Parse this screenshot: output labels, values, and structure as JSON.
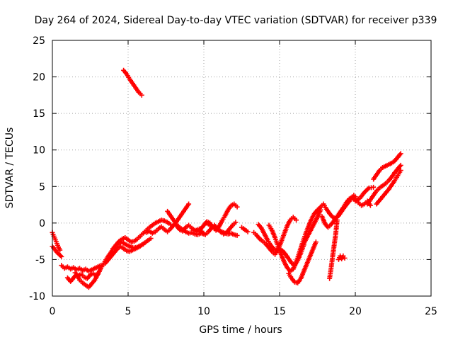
{
  "chart_data": {
    "type": "scatter",
    "title": "Day 264 of 2024, Sidereal Day-to-day VTEC variation (SDTVAR) for receiver p339",
    "xlabel": "GPS time / hours",
    "ylabel": "SDTVAR / TECUs",
    "xlim": [
      0,
      25
    ],
    "ylim": [
      -10,
      25
    ],
    "xticks": [
      0,
      5,
      10,
      15,
      20,
      25
    ],
    "yticks": [
      -10,
      -5,
      0,
      5,
      10,
      15,
      20,
      25
    ],
    "grid": true,
    "legend": "none",
    "marker": "plus",
    "color": "#ff0000",
    "series": [
      {
        "x": [
          0.0,
          0.1,
          0.2,
          0.3,
          0.4,
          0.5
        ],
        "y": [
          -1.3,
          -1.8,
          -2.3,
          -2.8,
          -3.3,
          -3.7
        ]
      },
      {
        "x": [
          0.0,
          0.15,
          0.3,
          0.45,
          0.6
        ],
        "y": [
          -3.2,
          -3.6,
          -4.0,
          -4.3,
          -4.6
        ]
      },
      {
        "x": [
          0.6,
          0.8,
          1.0,
          1.2,
          1.4,
          1.6,
          1.8,
          2.0,
          2.2,
          2.4,
          2.6,
          2.8,
          3.0,
          3.2
        ],
        "y": [
          -5.8,
          -6.2,
          -6.0,
          -6.3,
          -6.1,
          -6.4,
          -6.2,
          -6.5,
          -6.3,
          -6.6,
          -6.4,
          -6.2,
          -6.0,
          -5.8
        ]
      },
      {
        "x": [
          1.0,
          1.2,
          1.4,
          1.6,
          1.8,
          2.0,
          2.2,
          2.4,
          2.6,
          2.8,
          3.0
        ],
        "y": [
          -7.5,
          -8.0,
          -7.5,
          -7.0,
          -7.8,
          -8.2,
          -8.5,
          -8.8,
          -8.3,
          -7.8,
          -7.0
        ]
      },
      {
        "x": [
          1.5,
          1.7,
          1.9,
          2.1,
          2.3,
          2.5,
          2.7,
          2.9,
          3.1
        ],
        "y": [
          -6.8,
          -7.2,
          -7.0,
          -7.4,
          -7.6,
          -7.1,
          -6.9,
          -7.3,
          -6.6
        ]
      },
      {
        "x": [
          3.0,
          3.2,
          3.4,
          3.6,
          3.8,
          4.0,
          4.2,
          4.4,
          4.6,
          4.8,
          5.0,
          5.2,
          5.4,
          5.6,
          5.8,
          6.0
        ],
        "y": [
          -7.0,
          -6.2,
          -5.5,
          -4.8,
          -4.2,
          -3.6,
          -3.2,
          -2.8,
          -2.6,
          -2.9,
          -3.1,
          -3.3,
          -3.4,
          -3.3,
          -3.1,
          -2.9
        ]
      },
      {
        "x": [
          3.5,
          3.7,
          3.9,
          4.1,
          4.3,
          4.5,
          4.7,
          4.9,
          5.1,
          5.3,
          5.5,
          5.7,
          5.9,
          6.1,
          6.3,
          6.5
        ],
        "y": [
          -5.5,
          -5.0,
          -4.5,
          -4.0,
          -3.5,
          -3.2,
          -3.5,
          -3.8,
          -3.9,
          -3.7,
          -3.5,
          -3.3,
          -3.0,
          -2.7,
          -2.4,
          -2.1
        ]
      },
      {
        "x": [
          4.0,
          4.2,
          4.4,
          4.6,
          4.8,
          5.0,
          5.2,
          5.4,
          5.6,
          5.8,
          6.0,
          6.2,
          6.4,
          6.6,
          6.8,
          7.0,
          7.2,
          7.4,
          7.6,
          7.8
        ],
        "y": [
          -3.5,
          -3.0,
          -2.5,
          -2.2,
          -2.0,
          -2.3,
          -2.6,
          -2.5,
          -2.2,
          -1.8,
          -1.4,
          -1.0,
          -0.6,
          -0.3,
          0.0,
          0.2,
          0.4,
          0.3,
          0.1,
          -0.2
        ]
      },
      {
        "x": [
          4.7,
          4.9,
          5.1,
          5.3,
          5.5,
          5.7,
          5.9
        ],
        "y": [
          20.9,
          20.4,
          19.7,
          19.1,
          18.5,
          17.9,
          17.5
        ]
      },
      {
        "x": [
          6.2,
          6.4,
          6.6,
          6.8,
          7.0,
          7.2,
          7.4,
          7.6,
          7.8,
          8.0,
          8.2,
          8.4,
          8.6,
          8.8,
          9.0
        ],
        "y": [
          -1.3,
          -1.1,
          -1.4,
          -1.2,
          -0.8,
          -0.5,
          -0.9,
          -1.2,
          -0.8,
          -0.3,
          0.2,
          0.8,
          1.4,
          2.0,
          2.6
        ]
      },
      {
        "x": [
          7.6,
          7.8,
          8.0,
          8.2,
          8.4,
          8.6,
          8.8,
          9.0,
          9.2,
          9.4,
          9.6,
          9.8,
          10.0
        ],
        "y": [
          1.6,
          1.0,
          0.4,
          -0.2,
          -0.6,
          -0.9,
          -1.2,
          -1.4,
          -1.3,
          -1.5,
          -1.6,
          -1.4,
          -1.5
        ]
      },
      {
        "x": [
          8.2,
          8.4,
          8.6,
          8.8,
          9.0,
          9.2,
          9.4,
          9.6,
          9.8,
          10.0,
          10.2,
          10.4,
          10.6,
          10.8,
          11.0,
          11.2,
          11.4,
          11.6,
          11.8,
          12.0,
          12.2
        ],
        "y": [
          -0.4,
          -0.9,
          -1.1,
          -0.6,
          -0.3,
          -0.7,
          -1.0,
          -1.2,
          -0.8,
          -0.3,
          0.2,
          0.0,
          -0.6,
          -1.0,
          -0.5,
          0.3,
          1.0,
          1.8,
          2.4,
          2.6,
          2.2
        ]
      },
      {
        "x": [
          9.5,
          9.7,
          9.9,
          10.1,
          10.3,
          10.5,
          10.7,
          10.9,
          11.1,
          11.3,
          11.5,
          11.7,
          11.9,
          12.1
        ],
        "y": [
          -1.0,
          -0.8,
          -1.3,
          -1.6,
          -1.2,
          -0.7,
          -0.3,
          -0.8,
          -1.2,
          -1.5,
          -1.3,
          -0.8,
          -0.3,
          0.1
        ]
      },
      {
        "x": [
          10.2,
          10.4,
          10.6,
          10.8,
          11.0,
          11.2,
          11.4,
          11.6,
          11.8,
          12.0,
          12.2
        ],
        "y": [
          0.0,
          -0.3,
          -0.5,
          -0.8,
          -1.0,
          -1.2,
          -1.4,
          -1.5,
          -1.4,
          -1.6,
          -1.7
        ]
      },
      {
        "x": [
          12.5,
          12.7,
          12.9
        ],
        "y": [
          -0.6,
          -0.9,
          -1.2
        ]
      },
      {
        "x": [
          13.3,
          13.5,
          13.7,
          13.9,
          14.1,
          14.3,
          14.5,
          14.7,
          14.9,
          15.1,
          15.3,
          15.5,
          15.7,
          15.9,
          16.1
        ],
        "y": [
          -1.3,
          -1.7,
          -2.2,
          -2.5,
          -2.9,
          -3.4,
          -3.9,
          -4.3,
          -3.6,
          -2.6,
          -1.5,
          -0.4,
          0.4,
          0.8,
          0.4
        ]
      },
      {
        "x": [
          13.6,
          13.8,
          14.0,
          14.2,
          14.4,
          14.6,
          14.8,
          15.0,
          15.2,
          15.4,
          15.6,
          15.8,
          16.0,
          16.2,
          16.4,
          16.6
        ],
        "y": [
          -0.2,
          -0.7,
          -1.5,
          -2.3,
          -3.0,
          -3.5,
          -3.8,
          -3.6,
          -3.8,
          -4.3,
          -4.9,
          -5.5,
          -5.8,
          -5.1,
          -4.1,
          -3.0
        ]
      },
      {
        "x": [
          14.3,
          14.5,
          14.7,
          14.9,
          15.1,
          15.3,
          15.5,
          15.7,
          15.9,
          16.1,
          16.3,
          16.5,
          16.7,
          16.9,
          17.1,
          17.3,
          17.5
        ],
        "y": [
          -0.3,
          -1.0,
          -2.0,
          -3.2,
          -4.3,
          -5.3,
          -6.1,
          -6.6,
          -6.3,
          -5.3,
          -4.1,
          -2.8,
          -1.6,
          -0.5,
          0.5,
          1.3,
          1.8
        ]
      },
      {
        "x": [
          15.6,
          15.8,
          16.0,
          16.2,
          16.4,
          16.6,
          16.8,
          17.0,
          17.2,
          17.4
        ],
        "y": [
          -6.9,
          -7.6,
          -8.1,
          -8.2,
          -7.6,
          -6.6,
          -5.6,
          -4.6,
          -3.6,
          -2.6
        ]
      },
      {
        "x": [
          16.5,
          16.7,
          16.9,
          17.1,
          17.3,
          17.5,
          17.7
        ],
        "y": [
          -3.2,
          -2.4,
          -1.6,
          -0.8,
          0.0,
          0.8,
          1.8
        ]
      },
      {
        "x": [
          17.5,
          17.7,
          17.9,
          18.1,
          18.3,
          18.5,
          18.7,
          18.9,
          19.1,
          19.3,
          19.5,
          19.7,
          19.9
        ],
        "y": [
          1.6,
          2.2,
          2.6,
          1.9,
          1.3,
          0.8,
          0.6,
          1.0,
          1.6,
          2.2,
          2.8,
          3.4,
          3.8
        ]
      },
      {
        "x": [
          17.8,
          18.0,
          18.2,
          18.4,
          18.6,
          18.8,
          19.0,
          19.2,
          19.4,
          19.6,
          19.8,
          20.0
        ],
        "y": [
          0.9,
          -0.1,
          -0.6,
          -0.2,
          0.3,
          0.9,
          1.5,
          2.0,
          2.5,
          3.0,
          3.4,
          3.6
        ]
      },
      {
        "x": [
          18.3,
          18.4,
          18.5,
          18.6,
          18.7,
          18.8
        ],
        "y": [
          -7.6,
          -6.2,
          -4.6,
          -3.1,
          -1.6,
          0.4
        ]
      },
      {
        "x": [
          18.9,
          19.0,
          19.1,
          19.2,
          19.3
        ],
        "y": [
          -5.0,
          -4.5,
          -4.9,
          -4.5,
          -4.8
        ]
      },
      {
        "x": [
          19.0,
          19.2,
          19.4,
          19.6,
          19.8,
          20.0,
          20.2,
          20.4,
          20.6,
          20.8,
          21.0
        ],
        "y": [
          1.5,
          2.1,
          2.8,
          3.3,
          3.5,
          3.2,
          2.8,
          2.4,
          2.6,
          3.0,
          2.4
        ]
      },
      {
        "x": [
          20.0,
          20.3,
          20.6,
          20.9,
          21.2
        ],
        "y": [
          3.0,
          3.4,
          4.2,
          4.8,
          4.9
        ]
      },
      {
        "x": [
          21.2,
          21.4,
          21.6,
          21.8,
          22.0,
          22.2,
          22.4,
          22.6,
          22.8,
          23.0
        ],
        "y": [
          6.0,
          6.6,
          7.2,
          7.6,
          7.8,
          8.0,
          8.2,
          8.5,
          9.0,
          9.5
        ]
      },
      {
        "x": [
          20.8,
          21.0,
          21.2,
          21.4,
          21.6,
          21.8,
          22.0,
          22.2,
          22.4,
          22.6,
          22.8,
          23.0
        ],
        "y": [
          2.6,
          3.2,
          3.8,
          4.4,
          4.8,
          5.1,
          5.4,
          5.8,
          6.3,
          6.9,
          7.4,
          7.9
        ]
      },
      {
        "x": [
          21.4,
          21.6,
          21.8,
          22.0,
          22.2,
          22.4,
          22.6,
          22.8,
          23.0
        ],
        "y": [
          2.6,
          3.1,
          3.6,
          4.1,
          4.6,
          5.2,
          5.8,
          6.5,
          7.2
        ]
      }
    ]
  }
}
